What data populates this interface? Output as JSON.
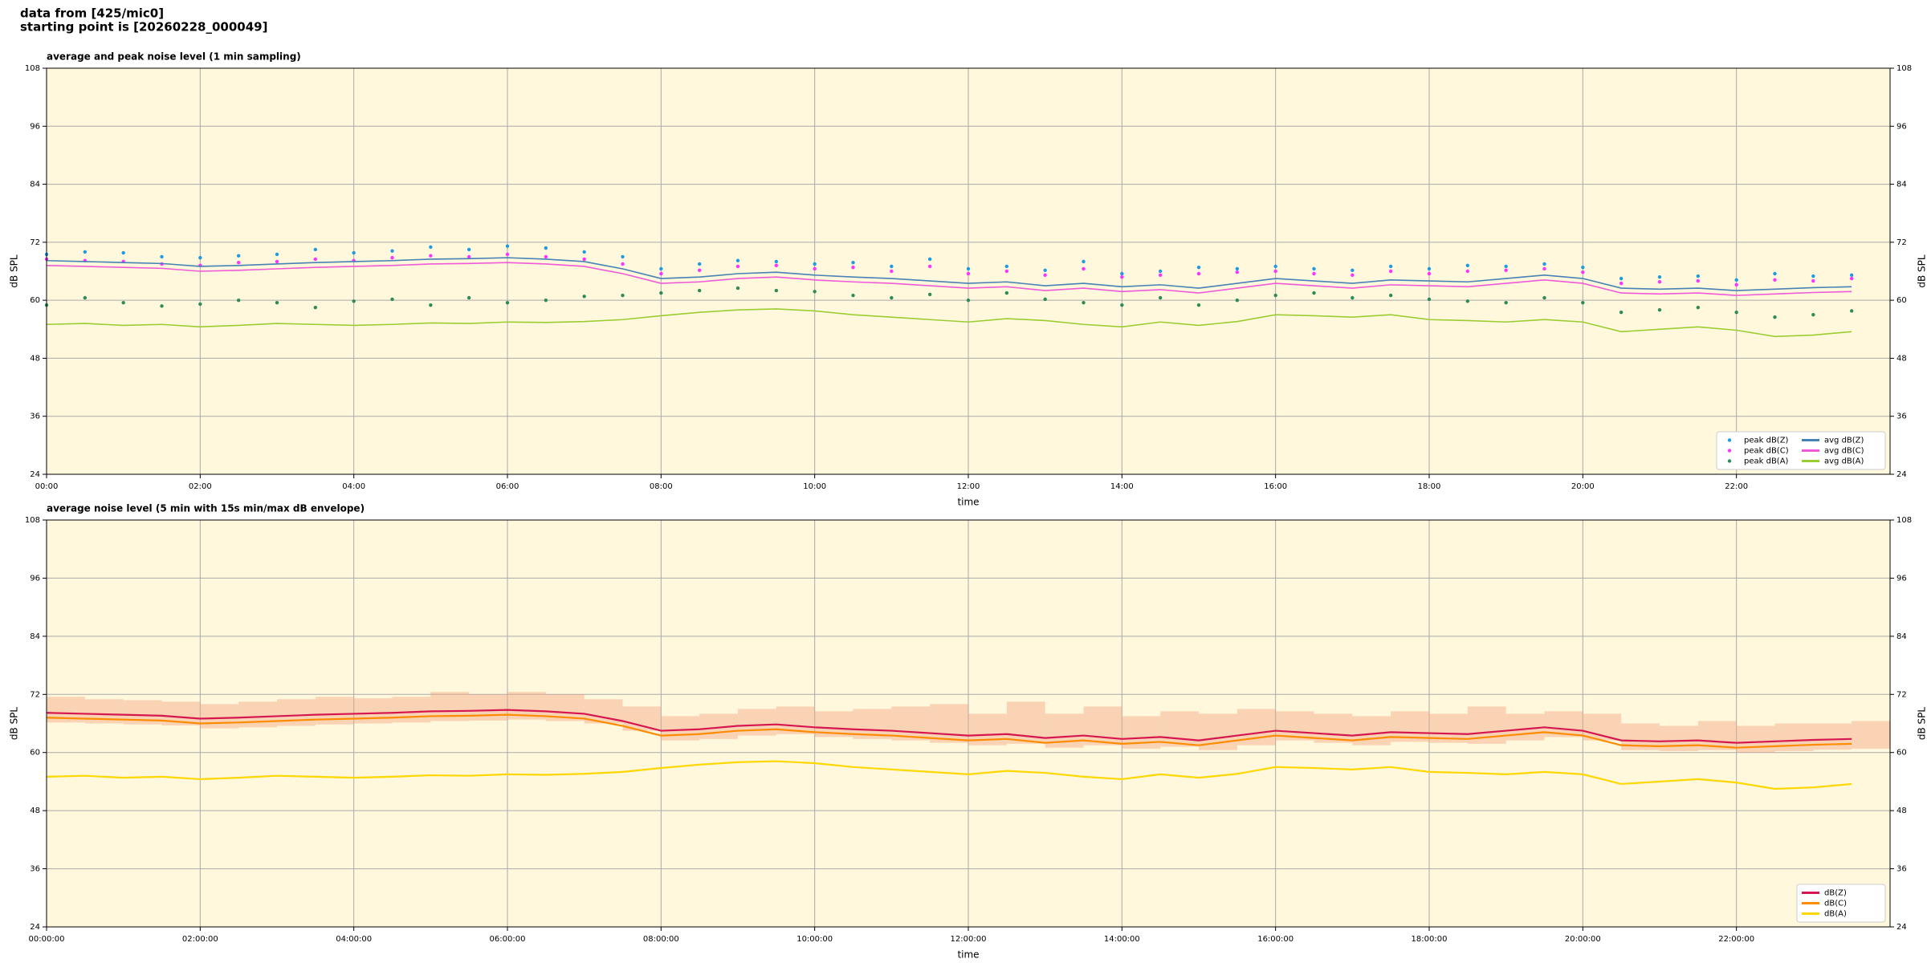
{
  "header": {
    "lines": [
      "data from [425/mic0]",
      "starting point is [20260228_000049]"
    ]
  },
  "chart_data": [
    {
      "type": "line",
      "title": "average and peak noise level (1 min sampling)",
      "xlabel": "time",
      "ylabel": "dB SPL",
      "y2label": "dB SPL",
      "background": "#fff8dc",
      "grid": true,
      "legend": "lower right",
      "legend_ncol": 2,
      "xlim": [
        0,
        24
      ],
      "ylim": [
        24,
        108
      ],
      "xticks": [
        {
          "value": 0,
          "label": "00:00"
        },
        {
          "value": 2,
          "label": "02:00"
        },
        {
          "value": 4,
          "label": "04:00"
        },
        {
          "value": 6,
          "label": "06:00"
        },
        {
          "value": 8,
          "label": "08:00"
        },
        {
          "value": 10,
          "label": "10:00"
        },
        {
          "value": 12,
          "label": "12:00"
        },
        {
          "value": 14,
          "label": "14:00"
        },
        {
          "value": 16,
          "label": "16:00"
        },
        {
          "value": 18,
          "label": "18:00"
        },
        {
          "value": 20,
          "label": "20:00"
        },
        {
          "value": 22,
          "label": "22:00"
        }
      ],
      "yticks": [
        24,
        36,
        48,
        60,
        72,
        84,
        96,
        108
      ],
      "x": [
        0,
        0.5,
        1,
        1.5,
        2,
        2.5,
        3,
        3.5,
        4,
        4.5,
        5,
        5.5,
        6,
        6.5,
        7,
        7.5,
        8,
        8.5,
        9,
        9.5,
        10,
        10.5,
        11,
        11.5,
        12,
        12.5,
        13,
        13.5,
        14,
        14.5,
        15,
        15.5,
        16,
        16.5,
        17,
        17.5,
        18,
        18.5,
        19,
        19.5,
        20,
        20.5,
        21,
        21.5,
        22,
        22.5,
        23,
        23.5
      ],
      "series": [
        {
          "name": "peak dB(Z)",
          "type": "scatter",
          "color": "#1f9be0",
          "values": [
            69.5,
            70.0,
            69.8,
            69.0,
            68.8,
            69.2,
            69.5,
            70.5,
            69.8,
            70.2,
            71.0,
            70.5,
            71.2,
            70.8,
            70.0,
            69.0,
            66.5,
            67.5,
            68.2,
            68.0,
            67.5,
            67.8,
            67.0,
            68.5,
            66.5,
            67.0,
            66.2,
            68.0,
            65.5,
            66.0,
            66.8,
            66.5,
            67.0,
            66.5,
            66.2,
            67.0,
            66.5,
            67.2,
            67.0,
            67.5,
            66.8,
            64.5,
            64.8,
            65.0,
            64.2,
            65.5,
            65.0,
            65.2
          ]
        },
        {
          "name": "peak dB(C)",
          "type": "scatter",
          "color": "#ff33ff",
          "values": [
            68.5,
            68.2,
            68.0,
            67.5,
            67.2,
            67.8,
            68.0,
            68.5,
            68.2,
            68.8,
            69.2,
            69.0,
            69.5,
            69.0,
            68.5,
            67.5,
            65.5,
            66.2,
            67.0,
            67.2,
            66.5,
            66.8,
            66.0,
            67.0,
            65.5,
            66.0,
            65.2,
            66.5,
            64.8,
            65.2,
            65.5,
            65.8,
            66.0,
            65.5,
            65.2,
            66.0,
            65.5,
            66.0,
            66.2,
            66.5,
            65.8,
            63.5,
            63.8,
            64.0,
            63.2,
            64.2,
            64.0,
            64.5
          ]
        },
        {
          "name": "peak dB(A)",
          "type": "scatter",
          "color": "#2e8b57",
          "values": [
            59.0,
            60.5,
            59.5,
            58.8,
            59.2,
            60.0,
            59.5,
            58.5,
            59.8,
            60.2,
            59.0,
            60.5,
            59.5,
            60.0,
            60.8,
            61.0,
            61.5,
            62.0,
            62.5,
            62.0,
            61.8,
            61.0,
            60.5,
            61.2,
            60.0,
            61.5,
            60.2,
            59.5,
            59.0,
            60.5,
            59.0,
            60.0,
            61.0,
            61.5,
            60.5,
            61.0,
            60.2,
            59.8,
            59.5,
            60.5,
            59.5,
            57.5,
            58.0,
            58.5,
            57.5,
            56.5,
            57.0,
            57.8
          ]
        },
        {
          "name": "avg dB(Z)",
          "type": "line",
          "color": "#4682b4",
          "values": [
            68.2,
            68.0,
            67.8,
            67.6,
            67.0,
            67.2,
            67.5,
            67.8,
            68.0,
            68.2,
            68.5,
            68.6,
            68.8,
            68.5,
            68.0,
            66.5,
            64.5,
            64.8,
            65.5,
            65.8,
            65.2,
            64.8,
            64.5,
            64.0,
            63.5,
            63.8,
            63.0,
            63.5,
            62.8,
            63.2,
            62.5,
            63.5,
            64.5,
            64.0,
            63.5,
            64.2,
            64.0,
            63.8,
            64.5,
            65.2,
            64.5,
            62.5,
            62.3,
            62.5,
            62.0,
            62.3,
            62.6,
            62.8
          ]
        },
        {
          "name": "avg dB(C)",
          "type": "line",
          "color": "#f05ad8",
          "values": [
            67.2,
            67.0,
            66.8,
            66.6,
            66.0,
            66.2,
            66.5,
            66.8,
            67.0,
            67.2,
            67.5,
            67.6,
            67.8,
            67.5,
            67.0,
            65.5,
            63.5,
            63.8,
            64.5,
            64.8,
            64.2,
            63.8,
            63.5,
            63.0,
            62.5,
            62.8,
            62.0,
            62.5,
            61.8,
            62.2,
            61.5,
            62.5,
            63.5,
            63.0,
            62.5,
            63.2,
            63.0,
            62.8,
            63.5,
            64.2,
            63.5,
            61.5,
            61.3,
            61.5,
            61.0,
            61.3,
            61.6,
            61.8
          ]
        },
        {
          "name": "avg dB(A)",
          "type": "line",
          "color": "#9acd32",
          "values": [
            55.0,
            55.2,
            54.8,
            55.0,
            54.5,
            54.8,
            55.2,
            55.0,
            54.8,
            55.0,
            55.3,
            55.2,
            55.5,
            55.4,
            55.6,
            56.0,
            56.8,
            57.5,
            58.0,
            58.2,
            57.8,
            57.0,
            56.5,
            56.0,
            55.5,
            56.2,
            55.8,
            55.0,
            54.5,
            55.5,
            54.8,
            55.6,
            57.0,
            56.8,
            56.5,
            57.0,
            56.0,
            55.8,
            55.5,
            56.0,
            55.5,
            53.5,
            54.0,
            54.5,
            53.8,
            52.5,
            52.8,
            53.5
          ]
        }
      ]
    },
    {
      "type": "line",
      "title": "average noise level (5 min with 15s min/max dB envelope)",
      "xlabel": "time",
      "ylabel": "dB SPL",
      "y2label": "dB SPL",
      "background": "#fff8dc",
      "grid": true,
      "legend": "lower right",
      "legend_ncol": 1,
      "xlim": [
        0,
        24
      ],
      "ylim": [
        24,
        108
      ],
      "xticks": [
        {
          "value": 0,
          "label": "00:00:00"
        },
        {
          "value": 2,
          "label": "02:00:00"
        },
        {
          "value": 4,
          "label": "04:00:00"
        },
        {
          "value": 6,
          "label": "06:00:00"
        },
        {
          "value": 8,
          "label": "08:00:00"
        },
        {
          "value": 10,
          "label": "10:00:00"
        },
        {
          "value": 12,
          "label": "12:00:00"
        },
        {
          "value": 14,
          "label": "14:00:00"
        },
        {
          "value": 16,
          "label": "16:00:00"
        },
        {
          "value": 18,
          "label": "18:00:00"
        },
        {
          "value": 20,
          "label": "20:00:00"
        },
        {
          "value": 22,
          "label": "22:00:00"
        }
      ],
      "yticks": [
        24,
        36,
        48,
        60,
        72,
        84,
        96,
        108
      ],
      "x": [
        0,
        0.5,
        1,
        1.5,
        2,
        2.5,
        3,
        3.5,
        4,
        4.5,
        5,
        5.5,
        6,
        6.5,
        7,
        7.5,
        8,
        8.5,
        9,
        9.5,
        10,
        10.5,
        11,
        11.5,
        12,
        12.5,
        13,
        13.5,
        14,
        14.5,
        15,
        15.5,
        16,
        16.5,
        17,
        17.5,
        18,
        18.5,
        19,
        19.5,
        20,
        20.5,
        21,
        21.5,
        22,
        22.5,
        23,
        23.5
      ],
      "envelope": {
        "color": "#f4a582",
        "max": [
          71.5,
          71.0,
          70.8,
          70.5,
          70.0,
          70.5,
          71.0,
          71.5,
          71.2,
          71.5,
          72.5,
          72.0,
          72.5,
          72.0,
          71.0,
          69.5,
          67.5,
          68.0,
          69.0,
          69.5,
          68.5,
          69.0,
          69.5,
          70.0,
          68.0,
          70.5,
          68.0,
          69.5,
          67.5,
          68.5,
          68.0,
          69.0,
          68.5,
          68.0,
          67.5,
          68.5,
          68.0,
          69.5,
          68.0,
          68.5,
          68.0,
          66.0,
          65.5,
          66.5,
          65.5,
          66.0,
          66.0,
          66.5
        ],
        "min": [
          66.2,
          66.0,
          65.8,
          65.6,
          65.0,
          65.2,
          65.5,
          65.8,
          66.0,
          66.2,
          66.5,
          66.6,
          66.8,
          66.5,
          66.0,
          64.5,
          62.5,
          62.8,
          63.5,
          63.8,
          63.2,
          62.8,
          62.5,
          62.0,
          61.5,
          61.8,
          61.0,
          61.5,
          60.8,
          61.2,
          60.5,
          61.5,
          62.5,
          62.0,
          61.5,
          62.2,
          62.0,
          61.8,
          62.5,
          63.2,
          62.5,
          60.5,
          60.3,
          60.5,
          60.0,
          60.3,
          60.6,
          60.8
        ]
      },
      "series": [
        {
          "name": "dB(Z)",
          "type": "line",
          "color": "#d6174f",
          "values": [
            68.2,
            68.0,
            67.8,
            67.6,
            67.0,
            67.2,
            67.5,
            67.8,
            68.0,
            68.2,
            68.5,
            68.6,
            68.8,
            68.5,
            68.0,
            66.5,
            64.5,
            64.8,
            65.5,
            65.8,
            65.2,
            64.8,
            64.5,
            64.0,
            63.5,
            63.8,
            63.0,
            63.5,
            62.8,
            63.2,
            62.5,
            63.5,
            64.5,
            64.0,
            63.5,
            64.2,
            64.0,
            63.8,
            64.5,
            65.2,
            64.5,
            62.5,
            62.3,
            62.5,
            62.0,
            62.3,
            62.6,
            62.8
          ]
        },
        {
          "name": "dB(C)",
          "type": "line",
          "color": "#ff8c00",
          "values": [
            67.2,
            67.0,
            66.8,
            66.6,
            66.0,
            66.2,
            66.5,
            66.8,
            67.0,
            67.2,
            67.5,
            67.6,
            67.8,
            67.5,
            67.0,
            65.5,
            63.5,
            63.8,
            64.5,
            64.8,
            64.2,
            63.8,
            63.5,
            63.0,
            62.5,
            62.8,
            62.0,
            62.5,
            61.8,
            62.2,
            61.5,
            62.5,
            63.5,
            63.0,
            62.5,
            63.2,
            63.0,
            62.8,
            63.5,
            64.2,
            63.5,
            61.5,
            61.3,
            61.5,
            61.0,
            61.3,
            61.6,
            61.8
          ]
        },
        {
          "name": "dB(A)",
          "type": "line",
          "color": "#ffd700",
          "values": [
            55.0,
            55.2,
            54.8,
            55.0,
            54.5,
            54.8,
            55.2,
            55.0,
            54.8,
            55.0,
            55.3,
            55.2,
            55.5,
            55.4,
            55.6,
            56.0,
            56.8,
            57.5,
            58.0,
            58.2,
            57.8,
            57.0,
            56.5,
            56.0,
            55.5,
            56.2,
            55.8,
            55.0,
            54.5,
            55.5,
            54.8,
            55.6,
            57.0,
            56.8,
            56.5,
            57.0,
            56.0,
            55.8,
            55.5,
            56.0,
            55.5,
            53.5,
            54.0,
            54.5,
            53.8,
            52.5,
            52.8,
            53.5
          ]
        }
      ]
    }
  ]
}
